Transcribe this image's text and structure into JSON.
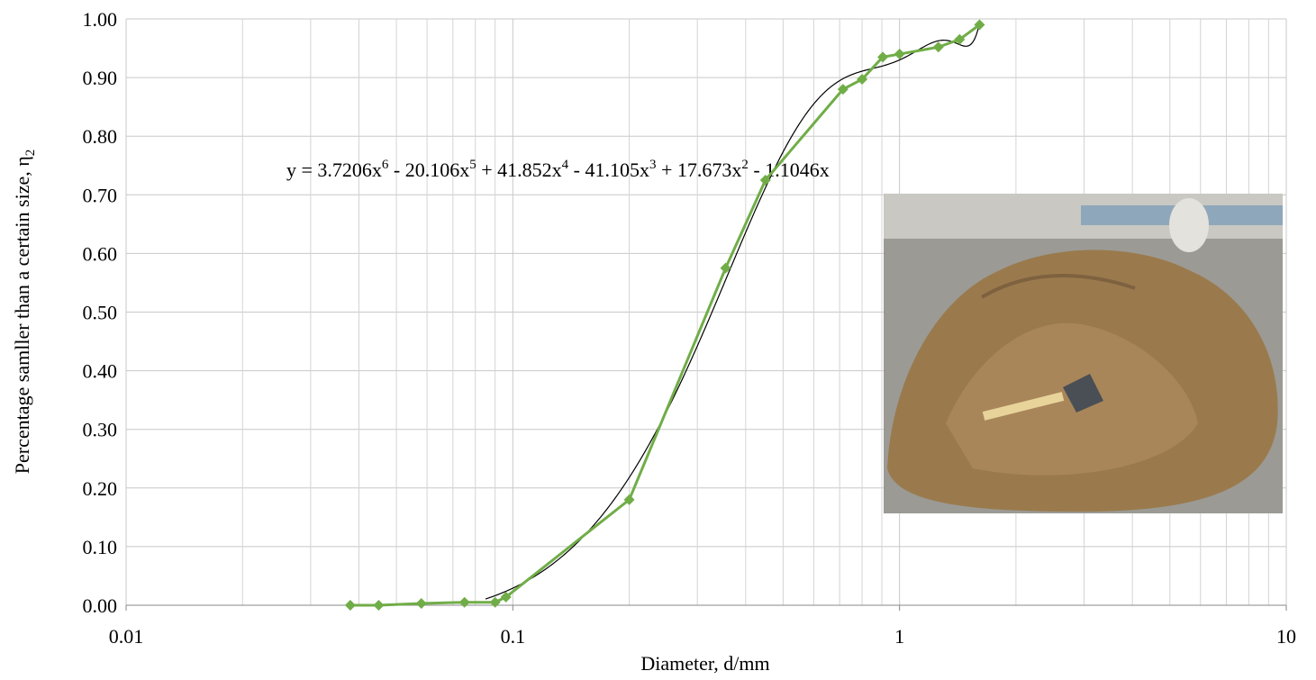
{
  "chart_data": {
    "type": "line",
    "x_label": "Diameter, d/mm",
    "y_label": [
      {
        "text": "Percentage samller than a certain size, η"
      },
      {
        "sub": "2"
      }
    ],
    "x_scale": "log",
    "xlim": [
      0.01,
      10
    ],
    "xticks": [
      0.01,
      0.1,
      1,
      10
    ],
    "minor_grid": true,
    "ylim": [
      0,
      1
    ],
    "yticks": [
      {
        "value": 0,
        "label": "0.00"
      },
      {
        "value": 0.1,
        "label": "0.10"
      },
      {
        "value": 0.2,
        "label": "0.20"
      },
      {
        "value": 0.3,
        "label": "0.30"
      },
      {
        "value": 0.4,
        "label": "0.40"
      },
      {
        "value": 0.5,
        "label": "0.50"
      },
      {
        "value": 0.6,
        "label": "0.60"
      },
      {
        "value": 0.7,
        "label": "0.70"
      },
      {
        "value": 0.8,
        "label": "0.80"
      },
      {
        "value": 0.9,
        "label": "0.90"
      },
      {
        "value": 1,
        "label": "1.00"
      }
    ],
    "grid": true,
    "x": [
      0.038,
      0.045,
      0.058,
      0.075,
      0.09,
      0.096,
      0.2,
      0.355,
      0.45,
      0.714,
      0.8,
      0.905,
      1.0,
      1.26,
      1.43,
      1.61
    ],
    "series": [
      {
        "color": "#70ad47",
        "values": [
          0,
          0,
          0.003,
          0.005,
          0.005,
          0.014,
          0.18,
          0.575,
          0.725,
          0.88,
          0.897,
          0.935,
          0.94,
          0.952,
          0.965,
          0.99
        ]
      }
    ],
    "trendline": {
      "color": "#000000",
      "coefficients": [
        3.7206,
        -20.106,
        41.852,
        -41.105,
        17.673,
        -1.1046
      ],
      "xlim": [
        0.085,
        1.61
      ]
    },
    "equation": [
      {
        "text": "y = 3.7206x"
      },
      {
        "sup": "6"
      },
      {
        "text": " - 20.106x"
      },
      {
        "sup": "5"
      },
      {
        "text": " + 41.852x"
      },
      {
        "sup": "4"
      },
      {
        "text": " - 41.105x"
      },
      {
        "sup": "3"
      },
      {
        "text": " + 17.673x"
      },
      {
        "sup": "2"
      },
      {
        "text": " - 1.1046x"
      }
    ]
  }
}
